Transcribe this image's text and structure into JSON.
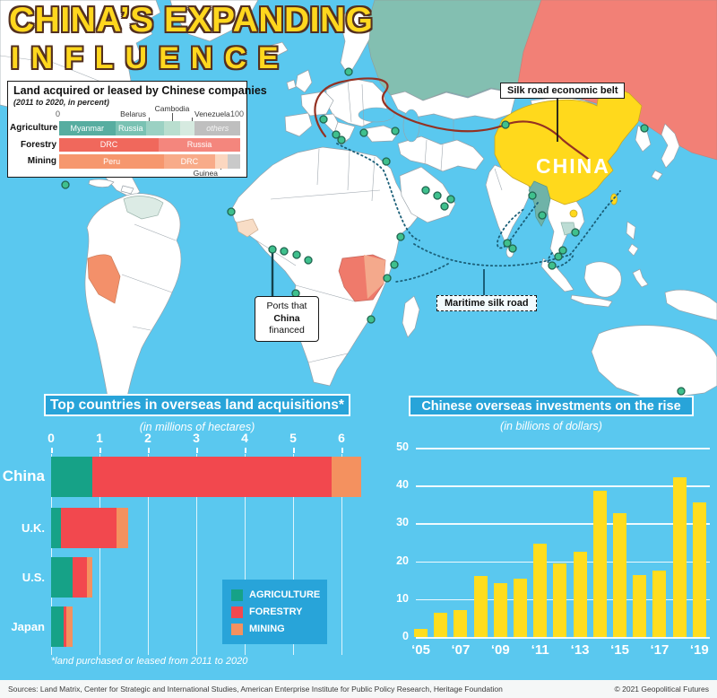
{
  "title": {
    "line1": "CHINA’S EXPANDING",
    "line2": "INFLUENCE"
  },
  "colors": {
    "ocean": "#5ac8ef",
    "land": "#ffffff",
    "border": "#98a1a8",
    "russia_west": "#83bfb1",
    "russia_east": "#f28076",
    "china": "#ffd91c",
    "myanmar": "#6fb3a8",
    "cambodia": "#bcdcd4",
    "venezuela": "#dcebe5",
    "peru": "#f3906a",
    "drc": "#ef7a6b",
    "drc_light": "#f4a98c",
    "guinea_pale": "#f8ddc6",
    "port_fill": "#3fc08d",
    "port_stroke": "#20654f",
    "silk_road_line": "#943122",
    "maritime_line": "#1b5f78",
    "agriculture": "#16a287",
    "forestry": "#f2484e",
    "mining": "#f4915f",
    "bar_yellow": "#ffdd1e",
    "panel_blue": "#28a4d9",
    "title_yellow": "#ffd71e",
    "title_outline": "#53301f"
  },
  "map": {
    "silk_road_label": "Silk road economic belt",
    "china_label": "CHINA",
    "ports_label_line1": "Ports that",
    "ports_label_bold": "China",
    "ports_label_rest": " financed",
    "maritime_label": "Maritime silk road"
  },
  "chart_data": [
    {
      "id": "land_by_sector",
      "type": "bar",
      "orientation": "horizontal-stacked",
      "title": "Land acquired or leased by Chinese companies",
      "subtitle": "(2011 to 2020, in percent)",
      "xlim": [
        0,
        100
      ],
      "axis_labels": [
        "0",
        "100"
      ],
      "rows": [
        {
          "label": "Agriculture",
          "segments": [
            {
              "name": "Myanmar",
              "value": 31,
              "color": "#57ada0",
              "show_label": true
            },
            {
              "name": "Russia",
              "value": 17,
              "color": "#7ac2b3",
              "show_label": true
            },
            {
              "name": "Belarus",
              "value": 10,
              "color": "#9bd1c3",
              "show_label": false
            },
            {
              "name": "Cambodia",
              "value": 9,
              "color": "#b9decf",
              "show_label": false
            },
            {
              "name": "Venezuela",
              "value": 8,
              "color": "#d6eae0",
              "show_label": false
            },
            {
              "name": "others",
              "value": 25,
              "color": "#bfbfbf",
              "show_label": true,
              "italic": true
            }
          ]
        },
        {
          "label": "Forestry",
          "segments": [
            {
              "name": "DRC",
              "value": 55,
              "color": "#f0685c",
              "show_label": true
            },
            {
              "name": "Russia",
              "value": 45,
              "color": "#f4867d",
              "show_label": true
            }
          ]
        },
        {
          "label": "Mining",
          "segments": [
            {
              "name": "Peru",
              "value": 58,
              "color": "#f6976e",
              "show_label": true
            },
            {
              "name": "DRC",
              "value": 28,
              "color": "#f8ab89",
              "show_label": true
            },
            {
              "name": "Guinea",
              "value": 7,
              "color": "#fbd7c0",
              "show_label": false
            },
            {
              "name": "",
              "value": 7,
              "color": "#c9c9c9",
              "show_label": false
            }
          ]
        }
      ],
      "callouts_top": [
        "Belarus",
        "Cambodia",
        "Venezuela"
      ],
      "callout_bottom": "Guinea"
    },
    {
      "id": "top_countries",
      "type": "bar",
      "orientation": "horizontal-stacked",
      "title": "Top countries in overseas land acquisitions*",
      "subtitle": "(in millions of hectares)",
      "xlim": [
        0,
        6.5
      ],
      "xticks": [
        0,
        1,
        2,
        3,
        4,
        5,
        6
      ],
      "categories": [
        "China",
        "U.K.",
        "U.S.",
        "Japan"
      ],
      "series": [
        {
          "name": "AGRICULTURE",
          "color": "#16a287",
          "values": [
            0.85,
            0.2,
            0.45,
            0.25
          ]
        },
        {
          "name": "FORESTRY",
          "color": "#f2484e",
          "values": [
            4.95,
            1.15,
            0.3,
            0.07
          ]
        },
        {
          "name": "MINING",
          "color": "#f4915f",
          "values": [
            0.6,
            0.25,
            0.1,
            0.12
          ]
        }
      ],
      "legend_position": "inside-right",
      "footnote": "*land purchased or leased from 2011 to 2020",
      "grid": "vertical-white"
    },
    {
      "id": "investments",
      "type": "bar",
      "title": "Chinese overseas investments on the rise",
      "subtitle": "(in billions of dollars)",
      "x": [
        "2005",
        "2006",
        "2007",
        "2008",
        "2009",
        "2010",
        "2011",
        "2012",
        "2013",
        "2014",
        "2015",
        "2016",
        "2017",
        "2018",
        "2019"
      ],
      "values": [
        2.2,
        6.3,
        7,
        16,
        14.3,
        15.5,
        24.7,
        19.4,
        22.5,
        38.7,
        32.7,
        16.3,
        17.6,
        42.2,
        35.5
      ],
      "x_tick_labels": [
        "‘05",
        "‘07",
        "‘09",
        "‘11",
        "‘13",
        "‘15",
        "‘17",
        "‘19"
      ],
      "ylim": [
        0,
        50
      ],
      "yticks": [
        0,
        10,
        20,
        30,
        40,
        50
      ],
      "bar_color": "#ffdd1e",
      "grid": "horizontal-white",
      "legend_position": "none"
    }
  ],
  "footer": {
    "sources": "Sources: Land Matrix, Center for Strategic and International Studies, American Enterprise Institute for Public Policy Research, Heritage Foundation",
    "copyright": "© 2021 Geopolitical Futures"
  }
}
